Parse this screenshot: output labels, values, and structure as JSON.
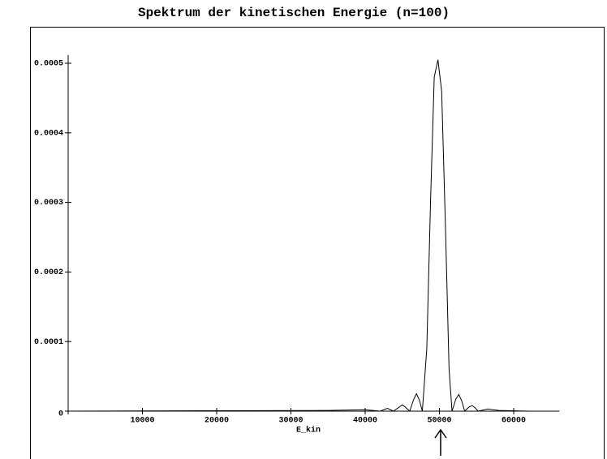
{
  "chart_data": {
    "type": "line",
    "title": "Spektrum der kinetischen Energie (n=100)",
    "x_label": "E_kin",
    "xlim": [
      0,
      65500
    ],
    "ylim": [
      0,
      0.000512
    ],
    "xticks": [
      0,
      10000,
      20000,
      30000,
      40000,
      50000,
      60000
    ],
    "yticks": [
      0,
      0.0001,
      0.0002,
      0.0003,
      0.0004,
      0.0005
    ],
    "color": "#000000",
    "x": [
      0,
      35000,
      40000,
      42000,
      43000,
      43800,
      44600,
      45000,
      45400,
      46000,
      46500,
      46900,
      47300,
      47700,
      48300,
      48800,
      49300,
      49800,
      50300,
      50800,
      51300,
      51700,
      52200,
      52600,
      53000,
      53400,
      54000,
      54400,
      54800,
      55200,
      56500,
      58000,
      62000
    ],
    "values": [
      0,
      1e-06,
      2e-06,
      0,
      4e-06,
      0,
      6e-06,
      9e-06,
      6e-06,
      0,
      1.6e-05,
      2.5e-05,
      1.6e-05,
      0,
      9e-05,
      0.0003,
      0.00048,
      0.000505,
      0.00046,
      0.00027,
      6e-05,
      0,
      1.7e-05,
      2.4e-05,
      1.5e-05,
      0,
      6e-06,
      8e-06,
      5e-06,
      0,
      3e-06,
      1e-06,
      0
    ]
  }
}
